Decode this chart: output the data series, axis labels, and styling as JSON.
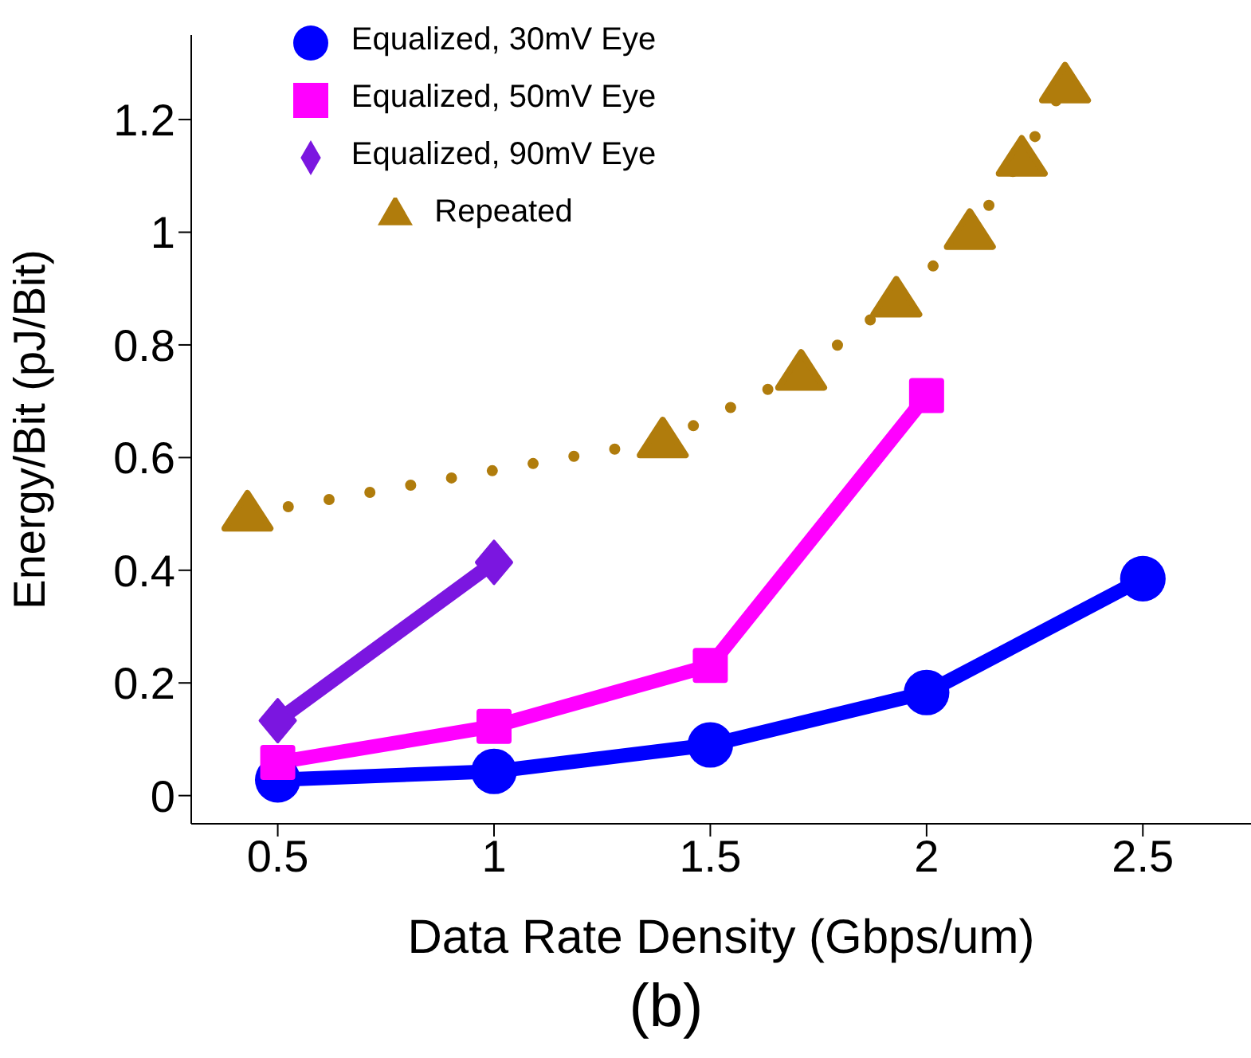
{
  "chart_data": {
    "type": "line",
    "xlabel": "Data Rate Density (Gbps/um)",
    "ylabel": "Energy/Bit (pJ/Bit)",
    "annotations": [
      "(b)"
    ],
    "xlim": [
      0.3,
      2.75
    ],
    "xticks": [
      0.5,
      1,
      1.5,
      2,
      2.5
    ],
    "ylim": [
      -0.05,
      1.35
    ],
    "yticks": [
      0,
      0.2,
      0.4,
      0.6,
      0.8,
      1,
      1.2
    ],
    "grid": false,
    "legend": "top left",
    "series": [
      {
        "name": "Equalized, 30mV Eye",
        "color": "#0000ff",
        "marker": "circle",
        "line_style": "solid",
        "x": [
          0.5,
          1,
          1.5,
          2,
          2.5
        ],
        "values": [
          0.028,
          0.043,
          0.09,
          0.183,
          0.385
        ]
      },
      {
        "name": "Equalized, 50mV Eye",
        "color": "#ff00ff",
        "marker": "square",
        "line_style": "solid",
        "x": [
          0.5,
          1,
          1.5,
          2
        ],
        "values": [
          0.059,
          0.123,
          0.231,
          0.71
        ]
      },
      {
        "name": "Equalized, 90mV Eye",
        "color": "#7b16e0",
        "marker": "diamond",
        "line_style": "solid",
        "x": [
          0.5,
          1
        ],
        "values": [
          0.133,
          0.414
        ]
      },
      {
        "name": "Repeated",
        "color": "#b07c0c",
        "marker": "triangle",
        "line_style": "dotted",
        "x": [
          0.43,
          1.39,
          1.71,
          1.93,
          2.1,
          2.22,
          2.32
        ],
        "values": [
          0.5,
          0.63,
          0.75,
          0.88,
          1.0,
          1.13,
          1.26
        ]
      }
    ]
  }
}
